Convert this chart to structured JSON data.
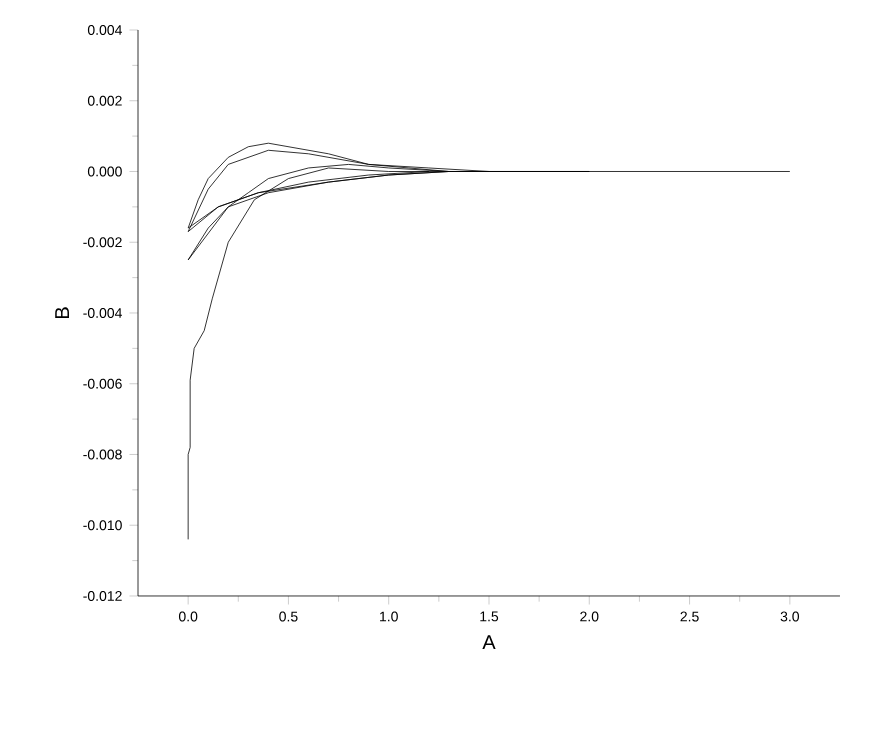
{
  "chart_data": {
    "type": "line",
    "xlabel": "A",
    "ylabel": "B",
    "xlim": [
      -0.25,
      3.25
    ],
    "ylim": [
      -0.012,
      0.004
    ],
    "xticks": [
      {
        "value": 0,
        "label": "0.0"
      },
      {
        "value": 0.5,
        "label": "0.5"
      },
      {
        "value": 1,
        "label": "1.0"
      },
      {
        "value": 1.5,
        "label": "1.5"
      },
      {
        "value": 2,
        "label": "2.0"
      },
      {
        "value": 2.5,
        "label": "2.5"
      },
      {
        "value": 3,
        "label": "3.0"
      }
    ],
    "yticks": [
      {
        "value": -0.012,
        "label": "-0.012"
      },
      {
        "value": -0.01,
        "label": "-0.010"
      },
      {
        "value": -0.008,
        "label": "-0.008"
      },
      {
        "value": -0.006,
        "label": "-0.006"
      },
      {
        "value": -0.004,
        "label": "-0.004"
      },
      {
        "value": -0.002,
        "label": "-0.002"
      },
      {
        "value": 0,
        "label": "0.000"
      },
      {
        "value": 0.002,
        "label": "0.002"
      },
      {
        "value": 0.004,
        "label": "0.004"
      }
    ],
    "grid": false,
    "marker": "none",
    "line_style": "solid",
    "series": [
      {
        "color": "#000000",
        "x": [
          0,
          0,
          0.01,
          0.01,
          0.03,
          0.08,
          0.12,
          0.2,
          0.33,
          0.5,
          0.7,
          1.0,
          1.5,
          2.0,
          3.0
        ],
        "values": [
          -0.0104,
          -0.008,
          -0.0078,
          -0.0059,
          -0.005,
          -0.0045,
          -0.0036,
          -0.002,
          -0.0008,
          -0.0002,
          0.0001,
          0.0,
          0.0,
          0.0,
          0.0
        ]
      },
      {
        "color": "#000000",
        "x": [
          0,
          0.05,
          0.1,
          0.2,
          0.3,
          0.4,
          0.5,
          0.7,
          0.9,
          1.1,
          1.3,
          2.0
        ],
        "values": [
          -0.0016,
          -0.0008,
          -0.0002,
          0.0004,
          0.0007,
          0.0008,
          0.0007,
          0.0005,
          0.0002,
          0.0001,
          0.0,
          0.0
        ]
      },
      {
        "color": "#000000",
        "x": [
          0,
          0.15,
          0.35,
          0.7,
          1.0,
          1.3
        ],
        "values": [
          -0.0016,
          -0.001,
          -0.0006,
          -0.0003,
          -0.0001,
          0.0
        ]
      },
      {
        "color": "#000000",
        "x": [
          0,
          0.1,
          0.2,
          0.4,
          0.6,
          0.9,
          1.2,
          1.5
        ],
        "values": [
          -0.0017,
          -0.0005,
          0.0002,
          0.0006,
          0.0005,
          0.0002,
          0.0001,
          0.0
        ]
      },
      {
        "color": "#000000",
        "x": [
          0,
          0.15,
          0.35,
          0.6,
          0.9,
          1.2
        ],
        "values": [
          -0.0017,
          -0.001,
          -0.0006,
          -0.0003,
          -0.0001,
          0.0
        ]
      },
      {
        "color": "#000000",
        "x": [
          0,
          0.1,
          0.2,
          0.3,
          0.4,
          0.6,
          0.8,
          1.0,
          1.3,
          2.0
        ],
        "values": [
          -0.0025,
          -0.0016,
          -0.001,
          -0.0006,
          -0.0002,
          0.0001,
          0.0002,
          0.0001,
          0.0,
          0.0
        ]
      },
      {
        "color": "#000000",
        "x": [
          0,
          0.2,
          0.4,
          0.7,
          1.0,
          1.3
        ],
        "values": [
          -0.0025,
          -0.001,
          -0.0006,
          -0.0003,
          -0.0001,
          0.0
        ]
      }
    ]
  }
}
